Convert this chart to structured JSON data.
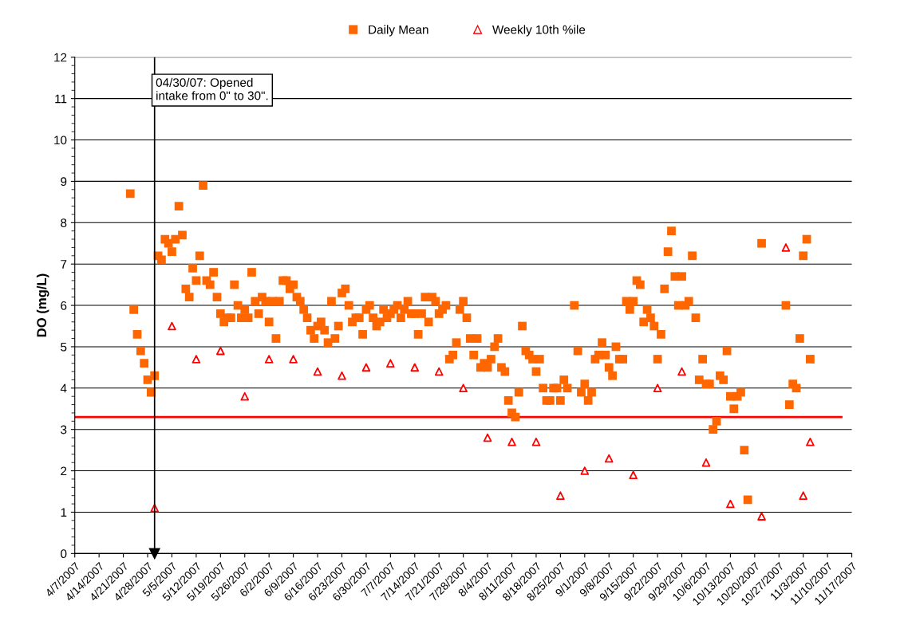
{
  "chart_data": {
    "type": "scatter",
    "ylabel": "DO (mg/L)",
    "xlim": [
      "2007-04-07",
      "2007-11-17"
    ],
    "xticks": [
      {
        "value": "2007-04-07",
        "label": "4/7/2007"
      },
      {
        "value": "2007-04-14",
        "label": "4/14/2007"
      },
      {
        "value": "2007-04-21",
        "label": "4/21/2007"
      },
      {
        "value": "2007-04-28",
        "label": "4/28/2007"
      },
      {
        "value": "2007-05-05",
        "label": "5/5/2007"
      },
      {
        "value": "2007-05-12",
        "label": "5/12/2007"
      },
      {
        "value": "2007-05-19",
        "label": "5/19/2007"
      },
      {
        "value": "2007-05-26",
        "label": "5/26/2007"
      },
      {
        "value": "2007-06-02",
        "label": "6/2/2007"
      },
      {
        "value": "2007-06-09",
        "label": "6/9/2007"
      },
      {
        "value": "2007-06-16",
        "label": "6/16/2007"
      },
      {
        "value": "2007-06-23",
        "label": "6/23/2007"
      },
      {
        "value": "2007-06-30",
        "label": "6/30/2007"
      },
      {
        "value": "2007-07-07",
        "label": "7/7/2007"
      },
      {
        "value": "2007-07-14",
        "label": "7/14/2007"
      },
      {
        "value": "2007-07-21",
        "label": "7/21/2007"
      },
      {
        "value": "2007-07-28",
        "label": "7/28/2007"
      },
      {
        "value": "2007-08-04",
        "label": "8/4/2007"
      },
      {
        "value": "2007-08-11",
        "label": "8/11/2007"
      },
      {
        "value": "2007-08-18",
        "label": "8/18/2007"
      },
      {
        "value": "2007-08-25",
        "label": "8/25/2007"
      },
      {
        "value": "2007-09-01",
        "label": "9/1/2007"
      },
      {
        "value": "2007-09-08",
        "label": "9/8/2007"
      },
      {
        "value": "2007-09-15",
        "label": "9/15/2007"
      },
      {
        "value": "2007-09-22",
        "label": "9/22/2007"
      },
      {
        "value": "2007-09-29",
        "label": "9/29/2007"
      },
      {
        "value": "2007-10-06",
        "label": "10/6/2007"
      },
      {
        "value": "2007-10-13",
        "label": "10/13/2007"
      },
      {
        "value": "2007-10-20",
        "label": "10/20/2007"
      },
      {
        "value": "2007-10-27",
        "label": "10/27/2007"
      },
      {
        "value": "2007-11-03",
        "label": "11/3/2007"
      },
      {
        "value": "2007-11-10",
        "label": "11/10/2007"
      },
      {
        "value": "2007-11-17",
        "label": "11/17/2007"
      }
    ],
    "ylim": [
      0,
      12
    ],
    "yticks": [
      0,
      1,
      2,
      3,
      4,
      5,
      6,
      7,
      8,
      9,
      10,
      11,
      12
    ],
    "grid": "y",
    "legend": "top",
    "series": [
      {
        "name": "Daily Mean",
        "color": "#ff6600",
        "marker": "square",
        "x": [
          "2007-04-23",
          "2007-04-24",
          "2007-04-25",
          "2007-04-26",
          "2007-04-27",
          "2007-04-28",
          "2007-04-29",
          "2007-04-30",
          "2007-05-01",
          "2007-05-02",
          "2007-05-03",
          "2007-05-04",
          "2007-05-05",
          "2007-05-06",
          "2007-05-07",
          "2007-05-08",
          "2007-05-09",
          "2007-05-10",
          "2007-05-11",
          "2007-05-12",
          "2007-05-13",
          "2007-05-14",
          "2007-05-15",
          "2007-05-16",
          "2007-05-17",
          "2007-05-18",
          "2007-05-19",
          "2007-05-20",
          "2007-05-21",
          "2007-05-22",
          "2007-05-23",
          "2007-05-24",
          "2007-05-25",
          "2007-05-26",
          "2007-05-27",
          "2007-05-28",
          "2007-05-29",
          "2007-05-30",
          "2007-05-31",
          "2007-06-01",
          "2007-06-02",
          "2007-06-03",
          "2007-06-04",
          "2007-06-05",
          "2007-06-06",
          "2007-06-07",
          "2007-06-08",
          "2007-06-09",
          "2007-06-10",
          "2007-06-11",
          "2007-06-12",
          "2007-06-13",
          "2007-06-14",
          "2007-06-15",
          "2007-06-16",
          "2007-06-17",
          "2007-06-18",
          "2007-06-19",
          "2007-06-20",
          "2007-06-21",
          "2007-06-22",
          "2007-06-23",
          "2007-06-24",
          "2007-06-25",
          "2007-06-26",
          "2007-06-27",
          "2007-06-28",
          "2007-06-29",
          "2007-06-30",
          "2007-07-01",
          "2007-07-02",
          "2007-07-03",
          "2007-07-04",
          "2007-07-05",
          "2007-07-06",
          "2007-07-07",
          "2007-07-08",
          "2007-07-09",
          "2007-07-10",
          "2007-07-11",
          "2007-07-12",
          "2007-07-13",
          "2007-07-14",
          "2007-07-15",
          "2007-07-16",
          "2007-07-17",
          "2007-07-18",
          "2007-07-19",
          "2007-07-20",
          "2007-07-21",
          "2007-07-22",
          "2007-07-23",
          "2007-07-24",
          "2007-07-25",
          "2007-07-26",
          "2007-07-27",
          "2007-07-28",
          "2007-07-29",
          "2007-07-30",
          "2007-07-31",
          "2007-08-01",
          "2007-08-02",
          "2007-08-03",
          "2007-08-04",
          "2007-08-05",
          "2007-08-06",
          "2007-08-07",
          "2007-08-08",
          "2007-08-09",
          "2007-08-10",
          "2007-08-11",
          "2007-08-12",
          "2007-08-13",
          "2007-08-14",
          "2007-08-15",
          "2007-08-16",
          "2007-08-17",
          "2007-08-18",
          "2007-08-19",
          "2007-08-20",
          "2007-08-21",
          "2007-08-22",
          "2007-08-23",
          "2007-08-24",
          "2007-08-25",
          "2007-08-26",
          "2007-08-27",
          "2007-08-29",
          "2007-08-30",
          "2007-08-31",
          "2007-09-01",
          "2007-09-02",
          "2007-09-03",
          "2007-09-04",
          "2007-09-05",
          "2007-09-06",
          "2007-09-07",
          "2007-09-08",
          "2007-09-09",
          "2007-09-10",
          "2007-09-11",
          "2007-09-12",
          "2007-09-13",
          "2007-09-14",
          "2007-09-15",
          "2007-09-16",
          "2007-09-17",
          "2007-09-18",
          "2007-09-19",
          "2007-09-20",
          "2007-09-21",
          "2007-09-22",
          "2007-09-23",
          "2007-09-24",
          "2007-09-25",
          "2007-09-26",
          "2007-09-27",
          "2007-09-28",
          "2007-09-29",
          "2007-09-30",
          "2007-10-01",
          "2007-10-02",
          "2007-10-03",
          "2007-10-04",
          "2007-10-05",
          "2007-10-06",
          "2007-10-07",
          "2007-10-08",
          "2007-10-09",
          "2007-10-10",
          "2007-10-11",
          "2007-10-12",
          "2007-10-13",
          "2007-10-14",
          "2007-10-15",
          "2007-10-16",
          "2007-10-17",
          "2007-10-18",
          "2007-10-22",
          "2007-10-29",
          "2007-10-30",
          "2007-10-31",
          "2007-11-01",
          "2007-11-02",
          "2007-11-03",
          "2007-11-04",
          "2007-11-05"
        ],
        "values": [
          8.7,
          5.9,
          5.3,
          4.9,
          4.6,
          4.2,
          3.9,
          4.3,
          7.2,
          7.1,
          7.6,
          7.5,
          7.3,
          7.6,
          8.4,
          7.7,
          6.4,
          6.2,
          6.9,
          6.6,
          7.2,
          8.9,
          6.6,
          6.5,
          6.8,
          6.2,
          5.8,
          5.6,
          5.7,
          5.7,
          6.5,
          6.0,
          5.7,
          5.9,
          5.7,
          6.8,
          6.1,
          5.8,
          6.2,
          6.1,
          5.6,
          6.1,
          5.2,
          6.1,
          6.6,
          6.6,
          6.4,
          6.5,
          6.2,
          6.1,
          5.9,
          5.7,
          5.4,
          5.2,
          5.5,
          5.6,
          5.4,
          5.1,
          6.1,
          5.2,
          5.5,
          6.3,
          6.4,
          6.0,
          5.6,
          5.7,
          5.7,
          5.3,
          5.9,
          6.0,
          5.7,
          5.5,
          5.6,
          5.9,
          5.7,
          5.8,
          5.9,
          6.0,
          5.7,
          5.9,
          6.1,
          5.8,
          5.8,
          5.3,
          5.8,
          6.2,
          5.6,
          6.2,
          6.1,
          5.8,
          5.9,
          6.0,
          4.7,
          4.8,
          5.1,
          5.9,
          6.1,
          5.7,
          5.2,
          4.8,
          5.2,
          4.5,
          4.6,
          4.5,
          4.7,
          5.0,
          5.2,
          4.5,
          4.4,
          3.7,
          3.4,
          3.3,
          3.9,
          5.5,
          4.9,
          4.8,
          4.7,
          4.4,
          4.7,
          4.0,
          3.7,
          3.7,
          4.0,
          4.0,
          3.7,
          4.2,
          4.0,
          6.0,
          4.9,
          3.9,
          4.1,
          3.7,
          3.9,
          4.7,
          4.8,
          5.1,
          4.8,
          4.5,
          4.3,
          5.0,
          4.7,
          4.7,
          6.1,
          5.9,
          6.1,
          6.6,
          6.5,
          5.6,
          5.9,
          5.7,
          5.5,
          4.7,
          5.3,
          6.4,
          7.3,
          7.8,
          6.7,
          6.0,
          6.7,
          6.0,
          6.1,
          7.2,
          5.7,
          4.2,
          4.7,
          4.1,
          4.1,
          3.0,
          3.2,
          4.3,
          4.2,
          4.9,
          3.8,
          3.5,
          3.8,
          3.9,
          2.5,
          1.3,
          7.5,
          6.0,
          3.6,
          4.1,
          4.0,
          5.2,
          7.2,
          7.6,
          4.7
        ]
      },
      {
        "name": "Weekly 10th %ile",
        "color": "#ff0000",
        "marker": "triangle",
        "x": [
          "2007-04-30",
          "2007-05-05",
          "2007-05-12",
          "2007-05-19",
          "2007-05-26",
          "2007-06-02",
          "2007-06-09",
          "2007-06-16",
          "2007-06-23",
          "2007-06-30",
          "2007-07-07",
          "2007-07-14",
          "2007-07-21",
          "2007-07-28",
          "2007-08-04",
          "2007-08-11",
          "2007-08-18",
          "2007-08-25",
          "2007-09-01",
          "2007-09-08",
          "2007-09-15",
          "2007-09-22",
          "2007-09-29",
          "2007-10-06",
          "2007-10-13",
          "2007-10-22",
          "2007-10-29",
          "2007-11-03",
          "2007-11-05"
        ],
        "values": [
          1.1,
          5.5,
          4.7,
          4.9,
          3.8,
          4.7,
          4.7,
          4.4,
          4.3,
          4.5,
          4.6,
          4.5,
          4.4,
          4.0,
          2.8,
          2.7,
          2.7,
          1.4,
          2.0,
          2.3,
          1.9,
          4.0,
          4.4,
          2.2,
          1.2,
          0.9,
          7.4,
          1.4,
          2.7
        ]
      },
      {
        "type": "line",
        "color": "#ff0000",
        "marker": "none",
        "x": [
          "2007-04-07",
          "2007-11-14"
        ],
        "values": [
          3.3,
          3.3
        ]
      }
    ],
    "ref_lines": [
      {
        "axis": "x",
        "value": "2007-04-30",
        "label": "04/30/07: Opened\nintake from 0\" to 30\".",
        "color": "#000000"
      }
    ]
  }
}
